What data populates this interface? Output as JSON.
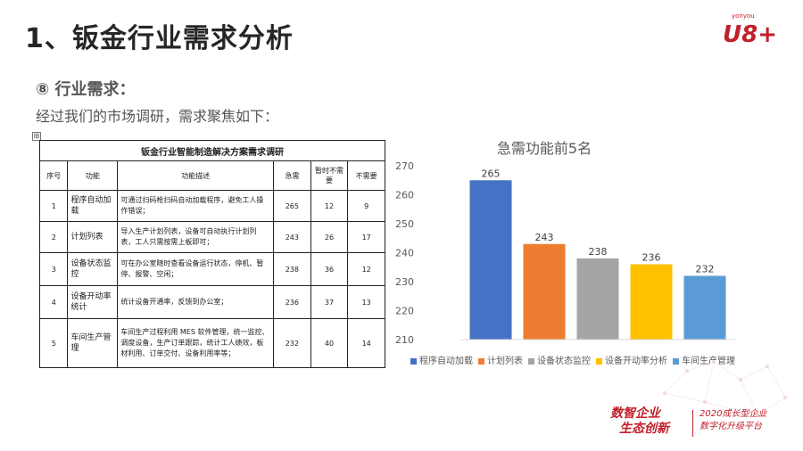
{
  "header": {
    "title": "1、钣金行业需求分析",
    "logo_small": "yonyou",
    "logo_text": "U8+"
  },
  "section": {
    "label": "⑧ 行业需求：",
    "intro": "经过我们的市场调研，需求聚焦如下：",
    "anchor_glyph": "⊞"
  },
  "table": {
    "title": "钣金行业智能制造解决方案需求调研",
    "headers": [
      "序号",
      "功能",
      "功能描述",
      "急需",
      "暂时不需要",
      "不需要"
    ],
    "rows": [
      {
        "seq": "1",
        "func": "程序自动加载",
        "desc": "可通过扫码枪扫码自动加载程序，避免工人操作错误；",
        "urgent": "265",
        "later": "12",
        "no": "9"
      },
      {
        "seq": "2",
        "func": "计划列表",
        "desc": "导入生产计划列表，设备可自动执行计划列表，工人只需按需上板即可；",
        "urgent": "243",
        "later": "26",
        "no": "17"
      },
      {
        "seq": "3",
        "func": "设备状态监控",
        "desc": "可在办公室随时查看设备运行状态，停机、暂停、报警、空闲；",
        "urgent": "238",
        "later": "36",
        "no": "12"
      },
      {
        "seq": "4",
        "func": "设备开动率统计",
        "desc": "统计设备开通率，反馈到办公室；",
        "urgent": "236",
        "later": "37",
        "no": "13"
      },
      {
        "seq": "5",
        "func": "车间生产管理",
        "desc": "车间生产过程利用 MES 软件管理，统一监控、调度设备，生产订单跟踪，统计工人绩效，板材利用、订单交付、设备利用率等；",
        "urgent": "232",
        "later": "40",
        "no": "14"
      }
    ]
  },
  "chart_data": {
    "type": "bar",
    "title": "急需功能前5名",
    "categories": [
      "程序自动加载",
      "计划列表",
      "设备状态监控",
      "设备开动率分析",
      "车间生产管理"
    ],
    "values": [
      265,
      243,
      238,
      236,
      232
    ],
    "colors": [
      "#4472c4",
      "#ed7d31",
      "#a5a5a5",
      "#ffc000",
      "#5b9bd5"
    ],
    "ylim": [
      210,
      270
    ],
    "yticks": [
      "210",
      "220",
      "230",
      "240",
      "250",
      "260",
      "270"
    ],
    "data_labels": [
      "265",
      "243",
      "238",
      "236",
      "232"
    ],
    "legend_position": "bottom",
    "grid": false
  },
  "footer": {
    "left_line1": "数智企业",
    "left_line2": "生态创新",
    "right_line1": "2020成长型企业",
    "right_line2": "数字化升级平台"
  }
}
